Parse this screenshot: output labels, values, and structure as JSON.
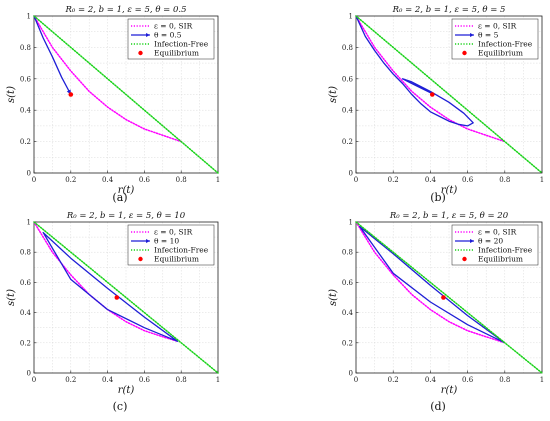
{
  "chart_data": [
    {
      "type": "line",
      "panel": "a",
      "caption": "(a)",
      "title": "R₀ = 2, b = 1, ε = 5, θ = 0.5",
      "xlabel": "r(t)",
      "ylabel": "s(t)",
      "xlim": [
        0,
        1
      ],
      "ylim": [
        0,
        1
      ],
      "xticks": [
        "0",
        "0.2",
        "0.4",
        "0.6",
        "0.8",
        "1"
      ],
      "yticks": [
        "0",
        "0.2",
        "0.4",
        "0.6",
        "0.8",
        "1"
      ],
      "grid": true,
      "legend_placement": "top-right",
      "legend": [
        "ε = 0, SIR",
        "θ = 0.5",
        "Infection-Free",
        "Equilibrium"
      ],
      "series": [
        {
          "name": "ε = 0, SIR",
          "style": "dotted",
          "color": "#ff00ff",
          "x": [
            0,
            0.1,
            0.2,
            0.3,
            0.4,
            0.5,
            0.6,
            0.7,
            0.8
          ],
          "y": [
            1,
            0.8,
            0.65,
            0.52,
            0.42,
            0.34,
            0.28,
            0.24,
            0.2
          ]
        },
        {
          "name": "θ = 0.5",
          "style": "arrow",
          "color": "#1f1fd6",
          "x": [
            0,
            0.05,
            0.1,
            0.15,
            0.2
          ],
          "y": [
            1,
            0.86,
            0.74,
            0.61,
            0.5
          ]
        },
        {
          "name": "Infection-Free",
          "style": "dotted",
          "color": "#19d219",
          "x": [
            0,
            1
          ],
          "y": [
            1,
            0
          ]
        }
      ],
      "equilibrium": {
        "x": 0.2,
        "y": 0.5,
        "color": "#ff0000"
      }
    },
    {
      "type": "line",
      "panel": "b",
      "caption": "(b)",
      "title": "R₀ = 2, b = 1, ε = 5, θ = 5",
      "xlabel": "r(t)",
      "ylabel": "s(t)",
      "xlim": [
        0,
        1
      ],
      "ylim": [
        0,
        1
      ],
      "xticks": [
        "0",
        "0.2",
        "0.4",
        "0.6",
        "0.8",
        "1"
      ],
      "yticks": [
        "0",
        "0.2",
        "0.4",
        "0.6",
        "0.8",
        "1"
      ],
      "grid": true,
      "legend_placement": "top-right",
      "legend": [
        "ε = 0, SIR",
        "θ = 5",
        "Infection-Free",
        "Equilibrium"
      ],
      "series": [
        {
          "name": "ε = 0, SIR",
          "style": "dotted",
          "color": "#ff00ff",
          "x": [
            0,
            0.1,
            0.2,
            0.3,
            0.4,
            0.5,
            0.6,
            0.7,
            0.8
          ],
          "y": [
            1,
            0.8,
            0.65,
            0.52,
            0.42,
            0.34,
            0.28,
            0.24,
            0.2
          ]
        },
        {
          "name": "θ = 5",
          "style": "spiral",
          "color": "#1f1fd6",
          "x": [
            0,
            0.05,
            0.1,
            0.15,
            0.2,
            0.25,
            0.3,
            0.35,
            0.4,
            0.45,
            0.5,
            0.55,
            0.6,
            0.63,
            0.58,
            0.5,
            0.4,
            0.3,
            0.25,
            0.3,
            0.42
          ],
          "y": [
            1,
            0.87,
            0.78,
            0.7,
            0.63,
            0.57,
            0.5,
            0.44,
            0.39,
            0.36,
            0.33,
            0.31,
            0.3,
            0.32,
            0.38,
            0.45,
            0.52,
            0.58,
            0.6,
            0.57,
            0.5
          ]
        },
        {
          "name": "Infection-Free",
          "style": "dotted",
          "color": "#19d219",
          "x": [
            0,
            1
          ],
          "y": [
            1,
            0
          ]
        }
      ],
      "equilibrium": {
        "x": 0.41,
        "y": 0.5,
        "color": "#ff0000"
      }
    },
    {
      "type": "line",
      "panel": "c",
      "caption": "(c)",
      "title": "R₀ = 2, b = 1, ε = 5, θ = 10",
      "xlabel": "r(t)",
      "ylabel": "s(t)",
      "xlim": [
        0,
        1
      ],
      "ylim": [
        0,
        1
      ],
      "xticks": [
        "0",
        "0.2",
        "0.4",
        "0.6",
        "0.8",
        "1"
      ],
      "yticks": [
        "0",
        "0.2",
        "0.4",
        "0.6",
        "0.8",
        "1"
      ],
      "grid": true,
      "legend_placement": "top-right",
      "legend": [
        "ε = 0, SIR",
        "θ = 10",
        "Infection-Free",
        "Equilibrium"
      ],
      "series": [
        {
          "name": "ε = 0, SIR",
          "style": "dotted",
          "color": "#ff00ff",
          "x": [
            0,
            0.1,
            0.2,
            0.3,
            0.4,
            0.5,
            0.6,
            0.7,
            0.78
          ],
          "y": [
            1,
            0.8,
            0.65,
            0.52,
            0.42,
            0.34,
            0.28,
            0.24,
            0.21
          ]
        },
        {
          "name": "θ = 10",
          "style": "cycles",
          "color": "#1f1fd6",
          "x": [
            0.05,
            0.2,
            0.4,
            0.6,
            0.78,
            0.6,
            0.4,
            0.2,
            0.05
          ],
          "y": [
            0.93,
            0.62,
            0.42,
            0.3,
            0.21,
            0.37,
            0.56,
            0.76,
            0.93
          ]
        },
        {
          "name": "Infection-Free",
          "style": "dotted",
          "color": "#19d219",
          "x": [
            0,
            1
          ],
          "y": [
            1,
            0
          ]
        }
      ],
      "equilibrium": {
        "x": 0.45,
        "y": 0.5,
        "color": "#ff0000"
      }
    },
    {
      "type": "line",
      "panel": "d",
      "caption": "(d)",
      "title": "R₀ = 2, b = 1, ε = 5, θ = 20",
      "xlabel": "r(t)",
      "ylabel": "s(t)",
      "xlim": [
        0,
        1
      ],
      "ylim": [
        0,
        1
      ],
      "xticks": [
        "0",
        "0.2",
        "0.4",
        "0.6",
        "0.8",
        "1"
      ],
      "yticks": [
        "0",
        "0.2",
        "0.4",
        "0.6",
        "0.8",
        "1"
      ],
      "grid": true,
      "legend_placement": "top-right",
      "legend": [
        "ε = 0, SIR",
        "θ = 20",
        "Infection-Free",
        "Equilibrium"
      ],
      "series": [
        {
          "name": "ε = 0, SIR",
          "style": "dotted",
          "color": "#ff00ff",
          "x": [
            0,
            0.1,
            0.2,
            0.3,
            0.4,
            0.5,
            0.6,
            0.7,
            0.8
          ],
          "y": [
            1,
            0.8,
            0.65,
            0.52,
            0.42,
            0.34,
            0.28,
            0.24,
            0.2
          ]
        },
        {
          "name": "θ = 20",
          "style": "cycles",
          "color": "#1f1fd6",
          "x": [
            0.02,
            0.2,
            0.4,
            0.6,
            0.8,
            0.6,
            0.4,
            0.2,
            0.02
          ],
          "y": [
            0.97,
            0.66,
            0.47,
            0.32,
            0.2,
            0.38,
            0.58,
            0.79,
            0.97
          ]
        },
        {
          "name": "Infection-Free",
          "style": "dotted",
          "color": "#19d219",
          "x": [
            0,
            1
          ],
          "y": [
            1,
            0
          ]
        }
      ],
      "equilibrium": {
        "x": 0.47,
        "y": 0.5,
        "color": "#ff0000"
      }
    }
  ]
}
